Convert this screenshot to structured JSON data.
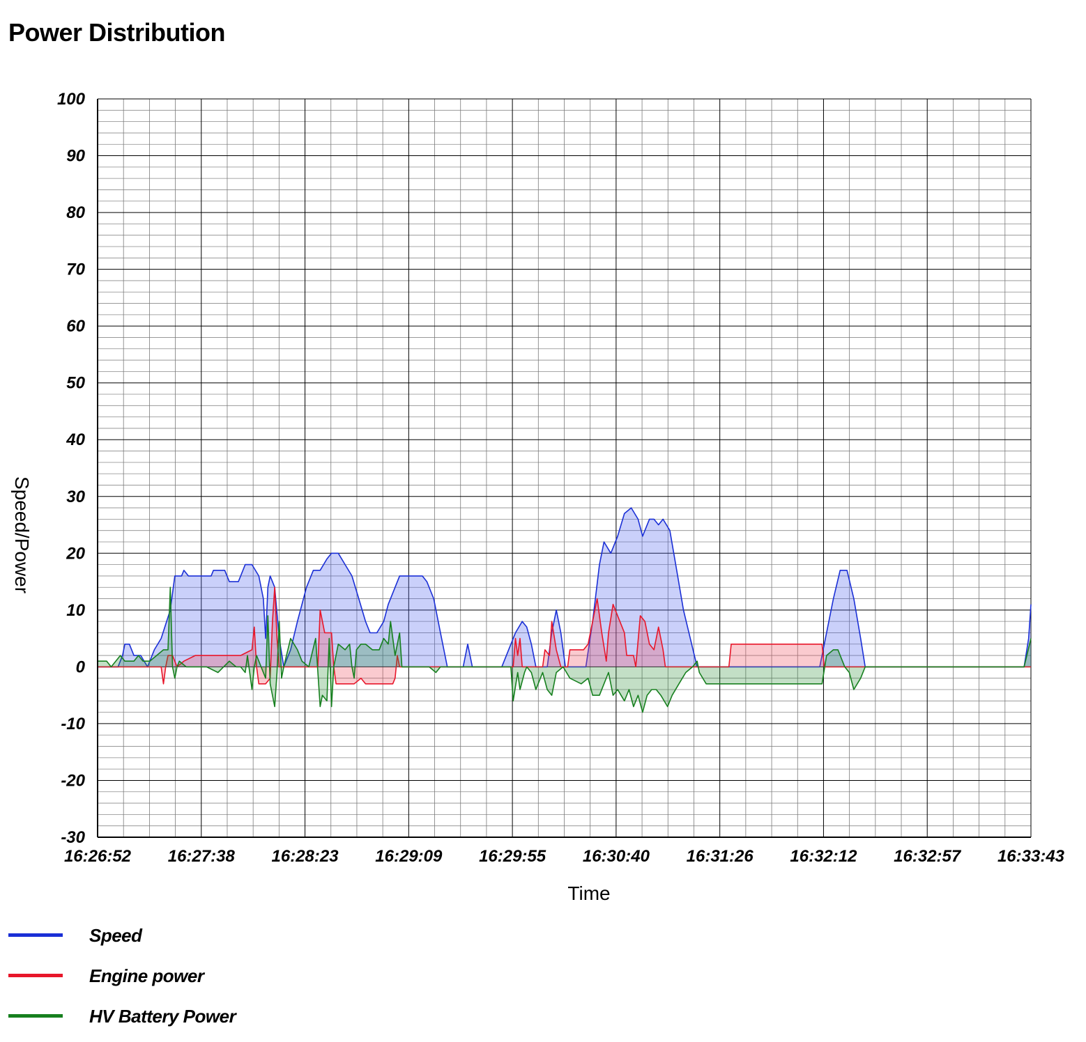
{
  "title": "Power Distribution",
  "chart_data": {
    "type": "area",
    "title": "Power Distribution",
    "xlabel": "Time",
    "ylabel": "Speed/Power",
    "ylim": [
      -30,
      100
    ],
    "y_ticks": [
      "100",
      "90",
      "80",
      "70",
      "60",
      "50",
      "40",
      "30",
      "20",
      "10",
      "0",
      "-10",
      "-20",
      "-30"
    ],
    "x_tick_labels": [
      "16:26:52",
      "16:27:38",
      "16:28:23",
      "16:29:09",
      "16:29:55",
      "16:30:40",
      "16:31:26",
      "16:32:12",
      "16:32:57",
      "16:33:43"
    ],
    "x_start": "16:26:52",
    "x_end": "16:33:43",
    "grid": true,
    "legend_position": "bottom-left",
    "series": [
      {
        "name": "Speed",
        "color": "#1a2fd6",
        "fill": "rgba(80,100,240,0.30)",
        "points": [
          [
            "16:26:52",
            0
          ],
          [
            "16:27:01",
            0
          ],
          [
            "16:27:03",
            2
          ],
          [
            "16:27:04",
            4
          ],
          [
            "16:27:06",
            4
          ],
          [
            "16:27:08",
            2
          ],
          [
            "16:27:11",
            2
          ],
          [
            "16:27:14",
            0
          ],
          [
            "16:27:17",
            3
          ],
          [
            "16:27:20",
            5
          ],
          [
            "16:27:24",
            10
          ],
          [
            "16:27:26",
            16
          ],
          [
            "16:27:29",
            16
          ],
          [
            "16:27:30",
            17
          ],
          [
            "16:27:32",
            16
          ],
          [
            "16:27:42",
            16
          ],
          [
            "16:27:43",
            17
          ],
          [
            "16:27:48",
            17
          ],
          [
            "16:27:50",
            15
          ],
          [
            "16:27:54",
            15
          ],
          [
            "16:27:57",
            18
          ],
          [
            "16:28:00",
            18
          ],
          [
            "16:28:03",
            16
          ],
          [
            "16:28:05",
            12
          ],
          [
            "16:28:06",
            5
          ],
          [
            "16:28:07",
            14
          ],
          [
            "16:28:08",
            16
          ],
          [
            "16:28:10",
            14
          ],
          [
            "16:28:12",
            5
          ],
          [
            "16:28:14",
            0
          ],
          [
            "16:28:17",
            3
          ],
          [
            "16:28:20",
            8
          ],
          [
            "16:28:24",
            14
          ],
          [
            "16:28:27",
            17
          ],
          [
            "16:28:30",
            17
          ],
          [
            "16:28:33",
            19
          ],
          [
            "16:28:35",
            20
          ],
          [
            "16:28:38",
            20
          ],
          [
            "16:28:41",
            18
          ],
          [
            "16:28:44",
            16
          ],
          [
            "16:28:47",
            12
          ],
          [
            "16:28:50",
            8
          ],
          [
            "16:28:52",
            6
          ],
          [
            "16:28:55",
            6
          ],
          [
            "16:28:58",
            8
          ],
          [
            "16:29:00",
            11
          ],
          [
            "16:29:03",
            14
          ],
          [
            "16:29:05",
            16
          ],
          [
            "16:29:15",
            16
          ],
          [
            "16:29:17",
            15
          ],
          [
            "16:29:20",
            12
          ],
          [
            "16:29:23",
            6
          ],
          [
            "16:29:26",
            0
          ],
          [
            "16:29:33",
            0
          ],
          [
            "16:29:35",
            4
          ],
          [
            "16:29:37",
            0
          ],
          [
            "16:29:50",
            0
          ],
          [
            "16:29:53",
            3
          ],
          [
            "16:29:56",
            6
          ],
          [
            "16:29:59",
            8
          ],
          [
            "16:30:01",
            7
          ],
          [
            "16:30:03",
            4
          ],
          [
            "16:30:05",
            0
          ],
          [
            "16:30:10",
            0
          ],
          [
            "16:30:12",
            6
          ],
          [
            "16:30:14",
            10
          ],
          [
            "16:30:16",
            6
          ],
          [
            "16:30:18",
            0
          ],
          [
            "16:30:27",
            0
          ],
          [
            "16:30:30",
            8
          ],
          [
            "16:30:33",
            18
          ],
          [
            "16:30:35",
            22
          ],
          [
            "16:30:38",
            20
          ],
          [
            "16:30:41",
            23
          ],
          [
            "16:30:44",
            27
          ],
          [
            "16:30:47",
            28
          ],
          [
            "16:30:50",
            26
          ],
          [
            "16:30:52",
            23
          ],
          [
            "16:30:55",
            26
          ],
          [
            "16:30:57",
            26
          ],
          [
            "16:30:59",
            25
          ],
          [
            "16:31:01",
            26
          ],
          [
            "16:31:04",
            24
          ],
          [
            "16:31:07",
            17
          ],
          [
            "16:31:10",
            10
          ],
          [
            "16:31:13",
            5
          ],
          [
            "16:31:16",
            0
          ],
          [
            "16:32:10",
            0
          ],
          [
            "16:32:13",
            6
          ],
          [
            "16:32:16",
            12
          ],
          [
            "16:32:19",
            17
          ],
          [
            "16:32:22",
            17
          ],
          [
            "16:32:25",
            12
          ],
          [
            "16:32:28",
            5
          ],
          [
            "16:32:30",
            0
          ],
          [
            "16:33:40",
            0
          ],
          [
            "16:33:42",
            5
          ],
          [
            "16:33:43",
            11
          ]
        ]
      },
      {
        "name": "Engine power",
        "color": "#e8162a",
        "fill": "rgba(240,80,95,0.30)",
        "points": [
          [
            "16:26:52",
            0
          ],
          [
            "16:27:20",
            0
          ],
          [
            "16:27:21",
            -3
          ],
          [
            "16:27:22",
            0
          ],
          [
            "16:27:23",
            2
          ],
          [
            "16:27:25",
            2
          ],
          [
            "16:27:27",
            0
          ],
          [
            "16:27:30",
            1
          ],
          [
            "16:27:35",
            2
          ],
          [
            "16:27:45",
            2
          ],
          [
            "16:27:55",
            2
          ],
          [
            "16:28:00",
            3
          ],
          [
            "16:28:01",
            7
          ],
          [
            "16:28:02",
            0
          ],
          [
            "16:28:03",
            -3
          ],
          [
            "16:28:06",
            -3
          ],
          [
            "16:28:08",
            -2
          ],
          [
            "16:28:09",
            8
          ],
          [
            "16:28:10",
            14
          ],
          [
            "16:28:11",
            5
          ],
          [
            "16:28:12",
            0
          ],
          [
            "16:28:29",
            0
          ],
          [
            "16:28:30",
            10
          ],
          [
            "16:28:32",
            6
          ],
          [
            "16:28:35",
            6
          ],
          [
            "16:28:36",
            0
          ],
          [
            "16:28:37",
            -3
          ],
          [
            "16:28:45",
            -3
          ],
          [
            "16:28:48",
            -2
          ],
          [
            "16:28:50",
            -3
          ],
          [
            "16:29:02",
            -3
          ],
          [
            "16:29:03",
            -2
          ],
          [
            "16:29:04",
            2
          ],
          [
            "16:29:05",
            0
          ],
          [
            "16:29:55",
            0
          ],
          [
            "16:29:56",
            5
          ],
          [
            "16:29:57",
            2
          ],
          [
            "16:29:58",
            5
          ],
          [
            "16:29:59",
            0
          ],
          [
            "16:30:08",
            0
          ],
          [
            "16:30:09",
            3
          ],
          [
            "16:30:11",
            2
          ],
          [
            "16:30:12",
            8
          ],
          [
            "16:30:14",
            3
          ],
          [
            "16:30:16",
            0
          ],
          [
            "16:30:19",
            0
          ],
          [
            "16:30:20",
            3
          ],
          [
            "16:30:26",
            3
          ],
          [
            "16:30:28",
            4
          ],
          [
            "16:30:30",
            8
          ],
          [
            "16:30:32",
            12
          ],
          [
            "16:30:34",
            6
          ],
          [
            "16:30:36",
            1
          ],
          [
            "16:30:37",
            6
          ],
          [
            "16:30:39",
            11
          ],
          [
            "16:30:42",
            8
          ],
          [
            "16:30:44",
            6
          ],
          [
            "16:30:45",
            2
          ],
          [
            "16:30:48",
            2
          ],
          [
            "16:30:49",
            0
          ],
          [
            "16:30:51",
            9
          ],
          [
            "16:30:53",
            8
          ],
          [
            "16:30:55",
            4
          ],
          [
            "16:30:57",
            3
          ],
          [
            "16:30:59",
            7
          ],
          [
            "16:31:01",
            3
          ],
          [
            "16:31:02",
            0
          ],
          [
            "16:31:30",
            0
          ],
          [
            "16:31:31",
            4
          ],
          [
            "16:32:11",
            4
          ],
          [
            "16:32:12",
            0
          ],
          [
            "16:33:43",
            0
          ]
        ]
      },
      {
        "name": "HV Battery Power",
        "color": "#17801f",
        "fill": "rgba(40,140,50,0.28)",
        "points": [
          [
            "16:26:52",
            1
          ],
          [
            "16:26:56",
            1
          ],
          [
            "16:26:58",
            0
          ],
          [
            "16:27:00",
            1
          ],
          [
            "16:27:02",
            2
          ],
          [
            "16:27:04",
            1
          ],
          [
            "16:27:08",
            1
          ],
          [
            "16:27:10",
            2
          ],
          [
            "16:27:12",
            1
          ],
          [
            "16:27:15",
            1
          ],
          [
            "16:27:18",
            2
          ],
          [
            "16:27:21",
            3
          ],
          [
            "16:27:23",
            3
          ],
          [
            "16:27:24",
            14
          ],
          [
            "16:27:25",
            0
          ],
          [
            "16:27:26",
            -2
          ],
          [
            "16:27:27",
            0
          ],
          [
            "16:27:28",
            1
          ],
          [
            "16:27:31",
            0
          ],
          [
            "16:27:34",
            0
          ],
          [
            "16:27:40",
            0
          ],
          [
            "16:27:45",
            -1
          ],
          [
            "16:27:50",
            1
          ],
          [
            "16:27:53",
            0
          ],
          [
            "16:27:55",
            0
          ],
          [
            "16:27:57",
            -1
          ],
          [
            "16:27:58",
            2
          ],
          [
            "16:28:00",
            -4
          ],
          [
            "16:28:01",
            0
          ],
          [
            "16:28:02",
            2
          ],
          [
            "16:28:04",
            0
          ],
          [
            "16:28:06",
            -2
          ],
          [
            "16:28:07",
            9
          ],
          [
            "16:28:08",
            -3
          ],
          [
            "16:28:10",
            -7
          ],
          [
            "16:28:11",
            -1
          ],
          [
            "16:28:12",
            8
          ],
          [
            "16:28:13",
            -2
          ],
          [
            "16:28:14",
            0
          ],
          [
            "16:28:17",
            5
          ],
          [
            "16:28:20",
            3
          ],
          [
            "16:28:22",
            1
          ],
          [
            "16:28:25",
            0
          ],
          [
            "16:28:28",
            5
          ],
          [
            "16:28:30",
            -7
          ],
          [
            "16:28:31",
            -5
          ],
          [
            "16:28:33",
            -6
          ],
          [
            "16:28:34",
            5
          ],
          [
            "16:28:35",
            -7
          ],
          [
            "16:28:36",
            0
          ],
          [
            "16:28:38",
            4
          ],
          [
            "16:28:41",
            3
          ],
          [
            "16:28:43",
            4
          ],
          [
            "16:28:44",
            0
          ],
          [
            "16:28:45",
            -2
          ],
          [
            "16:28:46",
            3
          ],
          [
            "16:28:48",
            4
          ],
          [
            "16:28:50",
            4
          ],
          [
            "16:28:53",
            3
          ],
          [
            "16:28:56",
            3
          ],
          [
            "16:28:58",
            5
          ],
          [
            "16:29:00",
            4
          ],
          [
            "16:29:01",
            8
          ],
          [
            "16:29:03",
            2
          ],
          [
            "16:29:05",
            6
          ],
          [
            "16:29:06",
            0
          ],
          [
            "16:29:08",
            0
          ],
          [
            "16:29:11",
            0
          ],
          [
            "16:29:14",
            0
          ],
          [
            "16:29:18",
            0
          ],
          [
            "16:29:21",
            -1
          ],
          [
            "16:29:23",
            0
          ],
          [
            "16:29:26",
            0
          ],
          [
            "16:29:54",
            0
          ],
          [
            "16:29:55",
            -6
          ],
          [
            "16:29:57",
            -1
          ],
          [
            "16:29:58",
            -4
          ],
          [
            "16:30:00",
            -1
          ],
          [
            "16:30:01",
            0
          ],
          [
            "16:30:03",
            -1
          ],
          [
            "16:30:05",
            -4
          ],
          [
            "16:30:08",
            -1
          ],
          [
            "16:30:10",
            -4
          ],
          [
            "16:30:12",
            -5
          ],
          [
            "16:30:14",
            -1
          ],
          [
            "16:30:17",
            0
          ],
          [
            "16:30:20",
            -2
          ],
          [
            "16:30:25",
            -3
          ],
          [
            "16:30:28",
            -2
          ],
          [
            "16:30:30",
            -5
          ],
          [
            "16:30:33",
            -5
          ],
          [
            "16:30:35",
            -3
          ],
          [
            "16:30:37",
            -1
          ],
          [
            "16:30:39",
            -5
          ],
          [
            "16:30:41",
            -4
          ],
          [
            "16:30:44",
            -6
          ],
          [
            "16:30:46",
            -4
          ],
          [
            "16:30:48",
            -7
          ],
          [
            "16:30:50",
            -5
          ],
          [
            "16:30:52",
            -8
          ],
          [
            "16:30:54",
            -5
          ],
          [
            "16:30:56",
            -4
          ],
          [
            "16:30:58",
            -4
          ],
          [
            "16:31:00",
            -5
          ],
          [
            "16:31:03",
            -7
          ],
          [
            "16:31:05",
            -5
          ],
          [
            "16:31:08",
            -3
          ],
          [
            "16:31:11",
            -1
          ],
          [
            "16:31:14",
            0
          ],
          [
            "16:31:16",
            1
          ],
          [
            "16:31:17",
            -1
          ],
          [
            "16:31:20",
            -3
          ],
          [
            "16:31:30",
            -3
          ],
          [
            "16:31:50",
            -3
          ],
          [
            "16:32:11",
            -3
          ],
          [
            "16:32:13",
            2
          ],
          [
            "16:32:16",
            3
          ],
          [
            "16:32:18",
            3
          ],
          [
            "16:32:21",
            0
          ],
          [
            "16:32:23",
            -1
          ],
          [
            "16:32:25",
            -4
          ],
          [
            "16:32:28",
            -2
          ],
          [
            "16:32:30",
            0
          ],
          [
            "16:33:40",
            0
          ],
          [
            "16:33:43",
            5
          ]
        ]
      }
    ]
  }
}
